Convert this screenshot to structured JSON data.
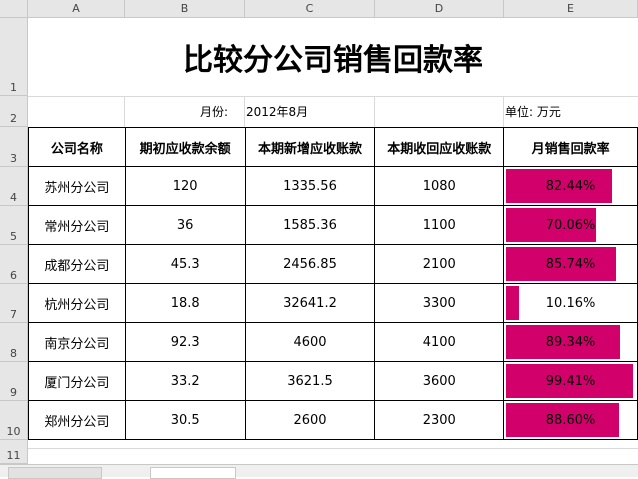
{
  "columns": [
    "A",
    "B",
    "C",
    "D",
    "E"
  ],
  "rows": [
    "1",
    "2",
    "3",
    "4",
    "5",
    "6",
    "7",
    "8",
    "9",
    "10",
    "11"
  ],
  "title": "比较分公司销售回款率",
  "month_label": "月份:",
  "month_value": "2012年8月",
  "unit_label": "单位: 万元",
  "headers": [
    "公司名称",
    "期初应收款余额",
    "本期新增应收账款",
    "本期收回应收账款",
    "月销售回款率"
  ],
  "table": [
    {
      "company": "苏州分公司",
      "opening": "120",
      "new": "1335.56",
      "collected": "1080",
      "rate": "82.44%",
      "rate_value": 0.8244
    },
    {
      "company": "常州分公司",
      "opening": "36",
      "new": "1585.36",
      "collected": "1100",
      "rate": "70.06%",
      "rate_value": 0.7006
    },
    {
      "company": "成都分公司",
      "opening": "45.3",
      "new": "2456.85",
      "collected": "2100",
      "rate": "85.74%",
      "rate_value": 0.8574
    },
    {
      "company": "杭州分公司",
      "opening": "18.8",
      "new": "32641.2",
      "collected": "3300",
      "rate": "10.16%",
      "rate_value": 0.1016
    },
    {
      "company": "南京分公司",
      "opening": "92.3",
      "new": "4600",
      "collected": "4100",
      "rate": "89.34%",
      "rate_value": 0.8934
    },
    {
      "company": "厦门分公司",
      "opening": "33.2",
      "new": "3621.5",
      "collected": "3600",
      "rate": "99.41%",
      "rate_value": 0.9941
    },
    {
      "company": "郑州分公司",
      "opening": "30.5",
      "new": "2600",
      "collected": "2300",
      "rate": "88.60%",
      "rate_value": 0.886
    }
  ],
  "colors": {
    "databar": "#d1006b",
    "header_bg": "#e6e6e6"
  }
}
